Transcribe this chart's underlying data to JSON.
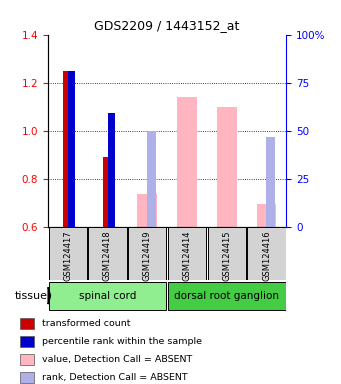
{
  "title": "GDS2209 / 1443152_at",
  "samples": [
    "GSM124417",
    "GSM124418",
    "GSM124419",
    "GSM124414",
    "GSM124415",
    "GSM124416"
  ],
  "tissue_groups": [
    {
      "label": "spinal cord",
      "indices": [
        0,
        1,
        2
      ],
      "color": "#90ee90"
    },
    {
      "label": "dorsal root ganglion",
      "indices": [
        3,
        4,
        5
      ],
      "color": "#44cc44"
    }
  ],
  "ylim_left": [
    0.6,
    1.4
  ],
  "ylim_right": [
    0,
    100
  ],
  "yticks_left": [
    0.6,
    0.8,
    1.0,
    1.2,
    1.4
  ],
  "yticks_right": [
    0,
    25,
    50,
    75,
    100
  ],
  "ytick_labels_right": [
    "0",
    "25",
    "50",
    "75",
    "100%"
  ],
  "red_bars": [
    1.25,
    0.89,
    null,
    null,
    null,
    null
  ],
  "blue_bars_pct": [
    81.25,
    59.375,
    null,
    null,
    null,
    null
  ],
  "pink_bars": [
    null,
    null,
    0.735,
    1.14,
    1.1,
    0.695
  ],
  "lavender_bars_pct": [
    null,
    null,
    50.0,
    null,
    null,
    46.875
  ],
  "red_color": "#cc0000",
  "blue_color": "#0000cc",
  "pink_color": "#ffb6c1",
  "lavender_color": "#b0b0e8",
  "background_color": "#ffffff",
  "legend_items": [
    {
      "color": "#cc0000",
      "label": "transformed count"
    },
    {
      "color": "#0000cc",
      "label": "percentile rank within the sample"
    },
    {
      "color": "#ffb6c1",
      "label": "value, Detection Call = ABSENT"
    },
    {
      "color": "#b0b0e8",
      "label": "rank, Detection Call = ABSENT"
    }
  ]
}
